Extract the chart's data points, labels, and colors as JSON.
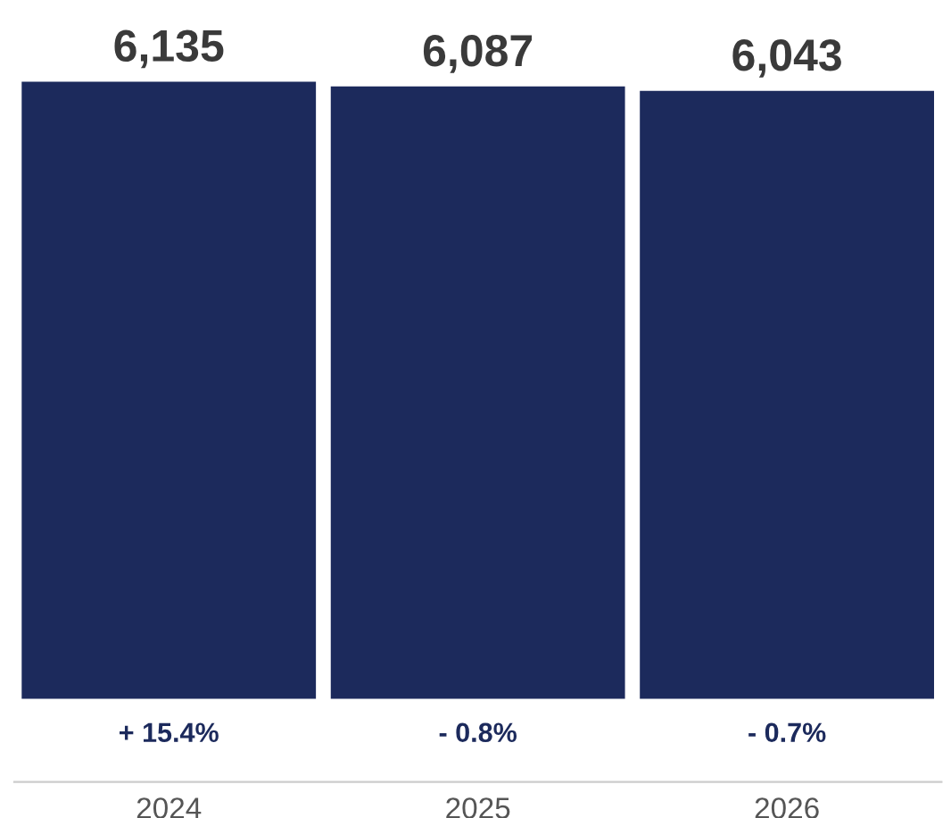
{
  "chart_data": {
    "type": "bar",
    "categories": [
      "2024",
      "2025",
      "2026"
    ],
    "values": [
      6135,
      6087,
      6043
    ],
    "color": "#1c2a5c",
    "data_labels": true,
    "value_labels": [
      "6,135",
      "6,087",
      "6,043"
    ],
    "annotations": [
      "+ 15.4%",
      "- 0.8%",
      "- 0.7%"
    ],
    "grid": false,
    "legend": false
  }
}
